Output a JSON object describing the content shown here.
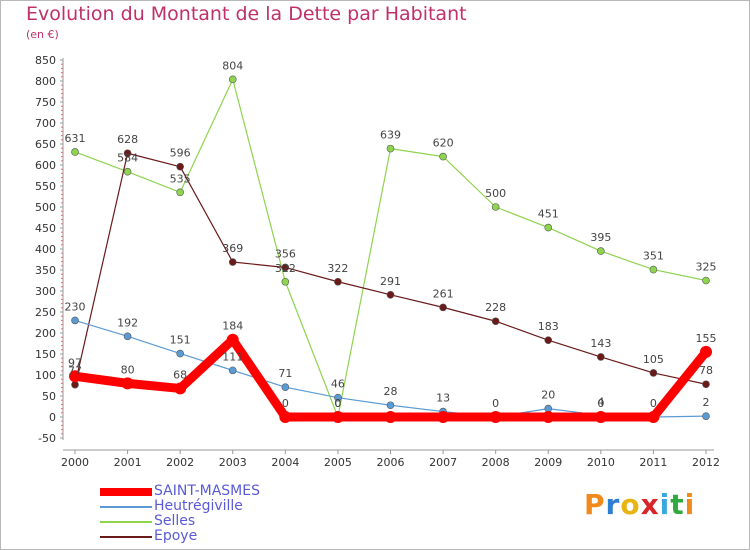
{
  "header": {
    "title": "Evolution du Montant de la Dette par Habitant",
    "subtitle": "(en €)"
  },
  "logo": {
    "text": "Proxiti",
    "colors": [
      "#f08a1c",
      "#2f7fd1",
      "#e8b411",
      "#d9252a",
      "#3aa8e0",
      "#2faa3f",
      "#f08a1c"
    ]
  },
  "chart_data": {
    "type": "line",
    "title": "Evolution du Montant de la Dette par Habitant",
    "subtitle": "(en €)",
    "x": [
      2000,
      2001,
      2002,
      2003,
      2004,
      2005,
      2006,
      2007,
      2008,
      2009,
      2010,
      2011,
      2012
    ],
    "ylim": [
      -50,
      850
    ],
    "yticks": [
      -50,
      0,
      50,
      100,
      150,
      200,
      250,
      300,
      350,
      400,
      450,
      500,
      550,
      600,
      650,
      700,
      750,
      800,
      850
    ],
    "grid": false,
    "legend_position": "bottom-left",
    "series": [
      {
        "name": "SAINT-MASMES",
        "color": "#ff0000",
        "values": [
          97,
          80,
          68,
          184,
          0,
          0,
          0,
          0,
          0,
          0,
          0,
          0,
          155
        ],
        "labels": [
          "97",
          "80",
          "68",
          "184",
          "0",
          "0",
          "",
          "",
          "0",
          "",
          "0",
          "0",
          "155"
        ]
      },
      {
        "name": "Heutrégiville",
        "color": "#5b9bd5",
        "values": [
          230,
          192,
          151,
          111,
          71,
          46,
          28,
          13,
          0,
          20,
          4,
          0,
          2
        ],
        "labels": [
          "230",
          "192",
          "151",
          "111",
          "71",
          "46",
          "28",
          "13",
          "",
          "20",
          "4",
          "",
          "2"
        ]
      },
      {
        "name": "Selles",
        "color": "#8ed44e",
        "values": [
          631,
          584,
          535,
          804,
          322,
          0,
          639,
          620,
          500,
          451,
          395,
          351,
          325
        ],
        "labels": [
          "631",
          "584",
          "535",
          "804",
          "322",
          "0",
          "639",
          "620",
          "500",
          "451",
          "395",
          "351",
          "325"
        ]
      },
      {
        "name": "Epoye",
        "color": "#6b1a1a",
        "values": [
          77,
          628,
          596,
          369,
          356,
          322,
          291,
          261,
          228,
          183,
          143,
          105,
          78
        ],
        "labels": [
          "77",
          "628",
          "596",
          "369",
          "356",
          "322",
          "291",
          "261",
          "228",
          "183",
          "143",
          "105",
          "78"
        ]
      }
    ]
  }
}
